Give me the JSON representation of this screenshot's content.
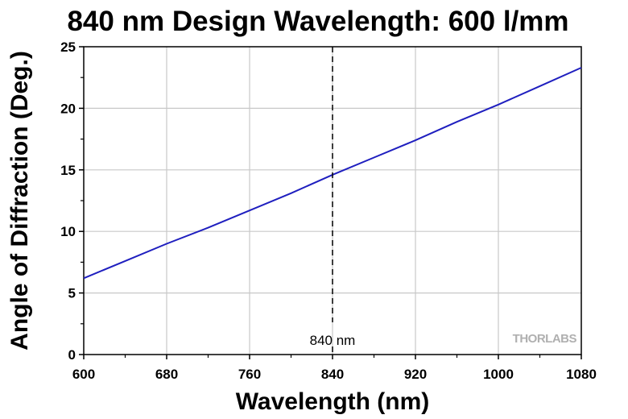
{
  "chart_data": {
    "type": "line",
    "title": "840 nm Design Wavelength: 600 l/mm",
    "xlabel": "Wavelength (nm)",
    "ylabel": "Angle of Diffraction (Deg.)",
    "xlim": [
      600,
      1080
    ],
    "ylim": [
      0,
      25
    ],
    "x_ticks": [
      600,
      680,
      760,
      840,
      920,
      1000,
      1080
    ],
    "y_ticks": [
      0,
      5,
      10,
      15,
      20,
      25
    ],
    "grid": true,
    "series": [
      {
        "color": "#1f1fbf",
        "x": [
          600,
          640,
          680,
          720,
          760,
          800,
          840,
          880,
          920,
          960,
          1000,
          1040,
          1080
        ],
        "y": [
          6.2,
          7.6,
          9.0,
          10.3,
          11.7,
          13.1,
          14.6,
          16.0,
          17.4,
          18.9,
          20.3,
          21.8,
          23.3
        ]
      }
    ],
    "marker_line": {
      "x": 840,
      "label": "840 nm",
      "style": "dashed",
      "color": "#000000"
    },
    "watermark": "THORLABS"
  }
}
